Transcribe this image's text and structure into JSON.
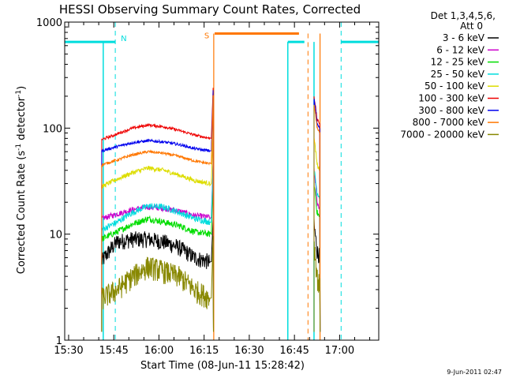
{
  "chart_data": {
    "type": "line",
    "title": "HESSI Observing Summary Count Rates, Corrected",
    "xlabel": "Start Time (08-Jun-11 15:28:42)",
    "ylabel_main": "Corrected Count Rate (s",
    "ylabel_sup1": "-1",
    "ylabel_mid": " detector",
    "ylabel_sup2": "-1",
    "ylabel_end": ")",
    "timestamp": "9-Jun-2011 02:47",
    "x_unit": "minutes",
    "xlim": [
      928.7,
      1033
    ],
    "xticks": [
      {
        "value": 930,
        "label": "15:30"
      },
      {
        "value": 945,
        "label": "15:45"
      },
      {
        "value": 960,
        "label": "16:00"
      },
      {
        "value": 975,
        "label": "16:15"
      },
      {
        "value": 990,
        "label": "16:30"
      },
      {
        "value": 1005,
        "label": "16:45"
      },
      {
        "value": 1020,
        "label": "17:00"
      }
    ],
    "y_scale": "log",
    "ylim": [
      1,
      1000
    ],
    "yticks": [
      {
        "value": 1,
        "label": "1"
      },
      {
        "value": 10,
        "label": "10"
      },
      {
        "value": 100,
        "label": "100"
      },
      {
        "value": 1000,
        "label": "1000"
      }
    ],
    "legend": {
      "placement": "top-right outside",
      "header": [
        "Det 1,3,4,5,6,",
        "Att 0"
      ]
    },
    "segments": [
      [
        941,
        978
      ],
      [
        1011.5,
        1013.5
      ]
    ],
    "series": [
      {
        "name": "3 - 6 keV",
        "color": "#000000",
        "base_values": [
          5.5,
          8.5,
          9.0,
          9.0,
          8.5,
          7.5,
          6.0,
          5.5
        ],
        "flare_values": [
          12,
          7,
          6
        ],
        "noise": 0.18
      },
      {
        "name": "6 - 12 keV",
        "color": "#cc00cc",
        "base_values": [
          14,
          15.5,
          17,
          18,
          17.5,
          16.5,
          15,
          14.5
        ],
        "flare_values": [
          40,
          20,
          17
        ],
        "noise": 0.06
      },
      {
        "name": "12 - 25 keV",
        "color": "#00dd00",
        "base_values": [
          9,
          10.5,
          12.5,
          14,
          13,
          12,
          10.5,
          10
        ],
        "flare_values": [
          30,
          16,
          14
        ],
        "noise": 0.07
      },
      {
        "name": "25 - 50 keV",
        "color": "#00dddd",
        "base_values": [
          11,
          13,
          16,
          18.5,
          18,
          16,
          14,
          13
        ],
        "flare_values": [
          40,
          25,
          22
        ],
        "noise": 0.07
      },
      {
        "name": "50 - 100 keV",
        "color": "#dddd00",
        "base_values": [
          28,
          33,
          38,
          42,
          40,
          36,
          32,
          30
        ],
        "flare_values": [
          80,
          45,
          40
        ],
        "noise": 0.05
      },
      {
        "name": "100 - 300 keV",
        "color": "#ee0000",
        "base_values": [
          78,
          88,
          100,
          107,
          103,
          95,
          86,
          80
        ],
        "flare_values": [
          200,
          120,
          110
        ],
        "noise": 0.03
      },
      {
        "name": "300 - 800 keV",
        "color": "#0000ee",
        "base_values": [
          61,
          67,
          73,
          76,
          74,
          70,
          64,
          61
        ],
        "flare_values": [
          190,
          110,
          100
        ],
        "noise": 0.03
      },
      {
        "name": "800 - 7000 keV",
        "color": "#ff7700",
        "base_values": [
          45,
          50,
          56,
          60,
          58,
          54,
          49,
          46
        ],
        "flare_values": [
          170,
          100,
          90
        ],
        "noise": 0.03
      },
      {
        "name": "7000 - 20000 keV",
        "color": "#888800",
        "base_values": [
          2.5,
          3.0,
          4.0,
          5.0,
          4.5,
          4.0,
          3.0,
          2.5
        ],
        "flare_values": [
          8,
          4,
          3
        ],
        "noise": 0.25
      }
    ],
    "flags": {
      "saa_level": 650,
      "saa_color": "#00dddd",
      "saa_intervals": [
        [
          928.7,
          945.5
        ],
        [
          1002.8,
          1007.3
        ],
        [
          1007.3,
          1008.3
        ],
        [
          1020.5,
          1033
        ]
      ],
      "saa_label": "N",
      "night_level": 780,
      "night_color": "#ff7700",
      "night_interval": [
        978.5,
        1006.5
      ],
      "night_label": "S",
      "cyan_dashed_x": [
        945.5,
        1020.5
      ],
      "cyan_solid_x": [
        941.5,
        1002.8,
        1011.5
      ],
      "orange_dashed_x": [
        1009.5
      ],
      "orange_solid_x": [
        978.2,
        1013.5
      ]
    }
  }
}
